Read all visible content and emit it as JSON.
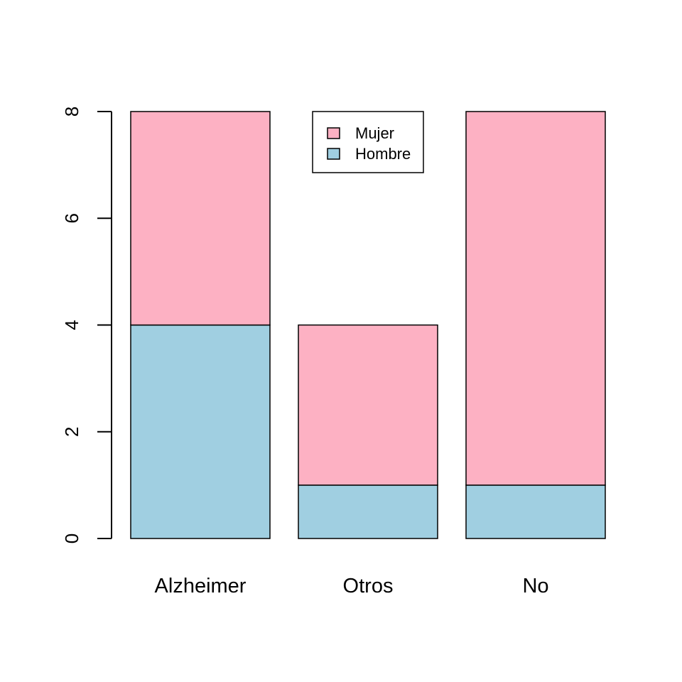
{
  "chart_data": {
    "type": "bar",
    "stacked": true,
    "categories": [
      "Alzheimer",
      "Otros",
      "No"
    ],
    "series": [
      {
        "name": "Hombre",
        "values": [
          4,
          1,
          1
        ],
        "color": "#a0cfe1"
      },
      {
        "name": "Mujer",
        "values": [
          4,
          3,
          7
        ],
        "color": "#fdb1c3"
      }
    ],
    "y_ticks": [
      "0",
      "2",
      "4",
      "6",
      "8"
    ],
    "ylim": [
      0,
      8
    ],
    "title": "",
    "xlabel": "",
    "ylabel": "",
    "legend": {
      "placement": "top-center",
      "order": [
        "Mujer",
        "Hombre"
      ]
    },
    "grid": false
  }
}
